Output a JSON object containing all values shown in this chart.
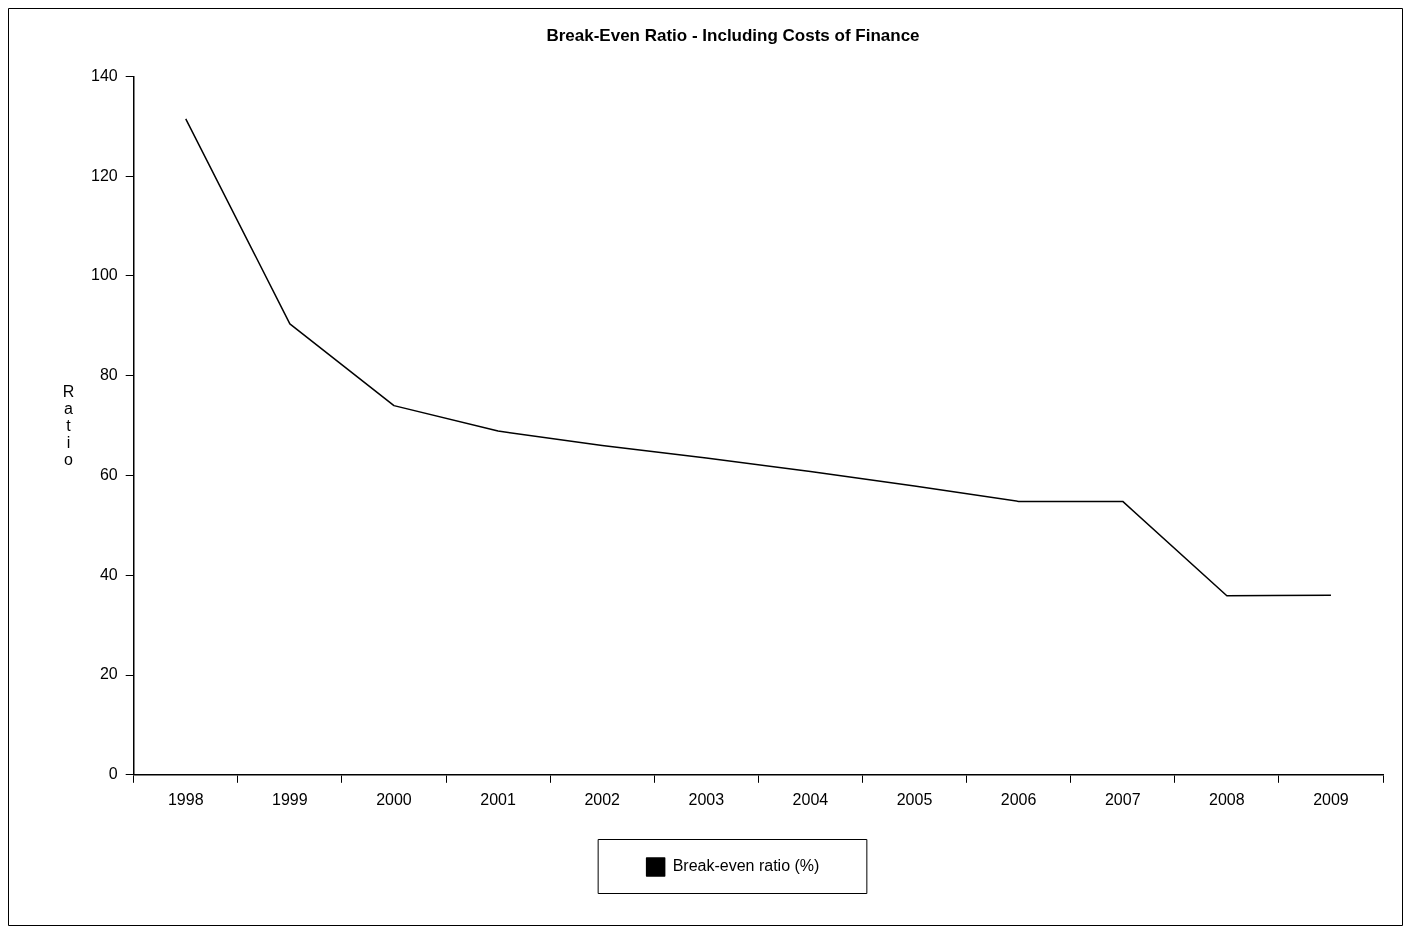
{
  "chart_data": {
    "type": "line",
    "title": "Break-Even Ratio - Including Costs of Finance",
    "ylabel": "Ratio",
    "categories": [
      "1998",
      "1999",
      "2000",
      "2001",
      "2002",
      "2003",
      "2004",
      "2005",
      "2006",
      "2007",
      "2008",
      "2009"
    ],
    "series": [
      {
        "name": "Break-even ratio (%)",
        "color": "#000000",
        "values": [
          131.5,
          90.4,
          74,
          68.9,
          66,
          63.5,
          60.8,
          57.9,
          54.8,
          54.8,
          35.9,
          36
        ]
      }
    ],
    "ylim": [
      0,
      140
    ],
    "yticks": [
      0,
      20,
      40,
      60,
      80,
      100,
      120,
      140
    ],
    "grid": false,
    "legend": "bottom",
    "marker": "none",
    "line_style": "solid"
  }
}
